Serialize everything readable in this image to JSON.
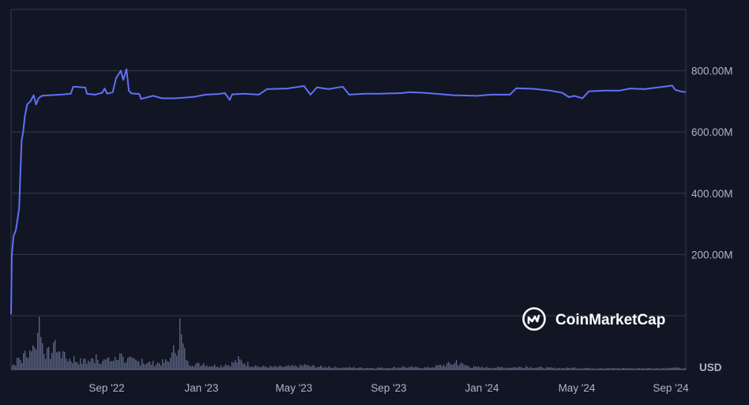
{
  "chart_data": {
    "type": "line",
    "currency_label": "USD",
    "watermark": "CoinMarketCap",
    "colors": {
      "background": "#121624",
      "line": "#6170f5",
      "grid": "#343a4b",
      "volume": "#5a6380"
    },
    "y_ticks": [
      {
        "value": 200000000,
        "label": "200.00M"
      },
      {
        "value": 400000000,
        "label": "400.00M"
      },
      {
        "value": 600000000,
        "label": "600.00M"
      },
      {
        "value": 800000000,
        "label": "800.00M"
      }
    ],
    "ylim": [
      0,
      1000000000
    ],
    "x_ticks": [
      "Sep '22",
      "Jan '23",
      "May '23",
      "Sep '23",
      "Jan '24",
      "May '24",
      "Sep '24"
    ],
    "x_range": [
      "2022-06-12",
      "2024-09-25"
    ],
    "series": [
      {
        "values": [
          [
            "2022-06-12",
            5000000
          ],
          [
            "2022-06-13",
            200000000
          ],
          [
            "2022-06-15",
            260000000
          ],
          [
            "2022-06-18",
            280000000
          ],
          [
            "2022-06-22",
            350000000
          ],
          [
            "2022-06-25",
            570000000
          ],
          [
            "2022-06-27",
            600000000
          ],
          [
            "2022-06-29",
            650000000
          ],
          [
            "2022-07-02",
            690000000
          ],
          [
            "2022-07-06",
            700000000
          ],
          [
            "2022-07-10",
            720000000
          ],
          [
            "2022-07-13",
            690000000
          ],
          [
            "2022-07-16",
            710000000
          ],
          [
            "2022-07-20",
            718000000
          ],
          [
            "2022-07-30",
            720000000
          ],
          [
            "2022-08-12",
            722000000
          ],
          [
            "2022-08-25",
            725000000
          ],
          [
            "2022-08-28",
            748000000
          ],
          [
            "2022-09-12",
            745000000
          ],
          [
            "2022-09-14",
            725000000
          ],
          [
            "2022-09-24",
            722000000
          ],
          [
            "2022-10-03",
            728000000
          ],
          [
            "2022-10-06",
            742000000
          ],
          [
            "2022-10-09",
            725000000
          ],
          [
            "2022-10-16",
            730000000
          ],
          [
            "2022-10-20",
            775000000
          ],
          [
            "2022-10-26",
            800000000
          ],
          [
            "2022-10-29",
            770000000
          ],
          [
            "2022-11-02",
            805000000
          ],
          [
            "2022-11-05",
            735000000
          ],
          [
            "2022-11-08",
            726000000
          ],
          [
            "2022-11-18",
            724000000
          ],
          [
            "2022-11-20",
            708000000
          ],
          [
            "2022-12-05",
            718000000
          ],
          [
            "2022-12-16",
            710000000
          ],
          [
            "2023-01-01",
            710000000
          ],
          [
            "2023-01-12",
            712000000
          ],
          [
            "2023-01-25",
            715000000
          ],
          [
            "2023-02-08",
            722000000
          ],
          [
            "2023-02-24",
            724000000
          ],
          [
            "2023-03-04",
            727000000
          ],
          [
            "2023-03-10",
            705000000
          ],
          [
            "2023-03-13",
            723000000
          ],
          [
            "2023-03-28",
            725000000
          ],
          [
            "2023-04-15",
            722000000
          ],
          [
            "2023-04-25",
            740000000
          ],
          [
            "2023-05-20",
            742000000
          ],
          [
            "2023-06-10",
            750000000
          ],
          [
            "2023-06-18",
            722000000
          ],
          [
            "2023-06-26",
            746000000
          ],
          [
            "2023-07-10",
            740000000
          ],
          [
            "2023-07-28",
            748000000
          ],
          [
            "2023-08-05",
            722000000
          ],
          [
            "2023-08-24",
            725000000
          ],
          [
            "2023-09-10",
            725000000
          ],
          [
            "2023-10-10",
            727000000
          ],
          [
            "2023-10-18",
            730000000
          ],
          [
            "2023-11-05",
            728000000
          ],
          [
            "2023-11-25",
            724000000
          ],
          [
            "2023-12-12",
            720000000
          ],
          [
            "2024-01-10",
            718000000
          ],
          [
            "2024-01-28",
            722000000
          ],
          [
            "2024-02-20",
            722000000
          ],
          [
            "2024-02-28",
            743000000
          ],
          [
            "2024-03-20",
            741000000
          ],
          [
            "2024-04-10",
            735000000
          ],
          [
            "2024-04-25",
            728000000
          ],
          [
            "2024-05-03",
            714000000
          ],
          [
            "2024-05-10",
            718000000
          ],
          [
            "2024-05-20",
            710000000
          ],
          [
            "2024-05-28",
            733000000
          ],
          [
            "2024-06-15",
            735000000
          ],
          [
            "2024-07-05",
            735000000
          ],
          [
            "2024-07-18",
            742000000
          ],
          [
            "2024-08-05",
            740000000
          ],
          [
            "2024-08-20",
            745000000
          ],
          [
            "2024-09-04",
            750000000
          ],
          [
            "2024-09-08",
            752000000
          ],
          [
            "2024-09-12",
            738000000
          ],
          [
            "2024-09-18",
            733000000
          ],
          [
            "2024-09-25",
            730000000
          ]
        ]
      }
    ],
    "volume": {
      "scale_max": 1,
      "values": [
        [
          "2022-06-12",
          0.08
        ],
        [
          "2022-06-20",
          0.22
        ],
        [
          "2022-06-28",
          0.35
        ],
        [
          "2022-07-08",
          0.45
        ],
        [
          "2022-07-16",
          0.98
        ],
        [
          "2022-07-26",
          0.4
        ],
        [
          "2022-08-05",
          0.55
        ],
        [
          "2022-08-15",
          0.34
        ],
        [
          "2022-08-28",
          0.25
        ],
        [
          "2022-09-10",
          0.2
        ],
        [
          "2022-09-25",
          0.28
        ],
        [
          "2022-10-10",
          0.22
        ],
        [
          "2022-10-25",
          0.3
        ],
        [
          "2022-11-05",
          0.24
        ],
        [
          "2022-11-20",
          0.2
        ],
        [
          "2022-12-05",
          0.16
        ],
        [
          "2022-12-25",
          0.22
        ],
        [
          "2023-01-07",
          0.95
        ],
        [
          "2023-01-15",
          0.18
        ],
        [
          "2023-02-05",
          0.12
        ],
        [
          "2023-03-05",
          0.1
        ],
        [
          "2023-03-20",
          0.25
        ],
        [
          "2023-04-10",
          0.08
        ],
        [
          "2023-05-10",
          0.07
        ],
        [
          "2023-06-10",
          0.1
        ],
        [
          "2023-07-10",
          0.06
        ],
        [
          "2023-08-10",
          0.05
        ],
        [
          "2023-09-10",
          0.04
        ],
        [
          "2023-10-10",
          0.06
        ],
        [
          "2023-11-10",
          0.05
        ],
        [
          "2023-12-15",
          0.18
        ],
        [
          "2024-01-05",
          0.06
        ],
        [
          "2024-02-10",
          0.05
        ],
        [
          "2024-03-10",
          0.07
        ],
        [
          "2024-04-10",
          0.04
        ],
        [
          "2024-05-10",
          0.04
        ],
        [
          "2024-06-10",
          0.03
        ],
        [
          "2024-07-10",
          0.03
        ],
        [
          "2024-08-10",
          0.03
        ],
        [
          "2024-09-10",
          0.04
        ],
        [
          "2024-09-25",
          0.03
        ]
      ]
    }
  }
}
